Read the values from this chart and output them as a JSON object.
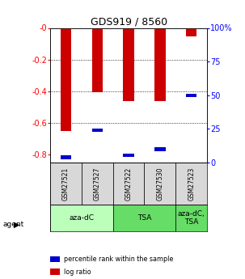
{
  "title": "GDS919 / 8560",
  "samples": [
    "GSM27521",
    "GSM27527",
    "GSM27522",
    "GSM27530",
    "GSM27523"
  ],
  "log_ratios": [
    -0.65,
    -0.405,
    -0.46,
    -0.46,
    -0.055
  ],
  "percentile_ranks": [
    4.0,
    24.0,
    5.5,
    10.0,
    50.0
  ],
  "bar_color": "#cc0000",
  "pct_color": "#0000cc",
  "ylim_left": [
    -0.85,
    0.0
  ],
  "ylim_right": [
    0.0,
    100.0
  ],
  "yticks_left": [
    0.0,
    -0.2,
    -0.4,
    -0.6,
    -0.8
  ],
  "ytick_labels_left": [
    "-0",
    "-0.2",
    "-0.4",
    "-0.6",
    "-0.8"
  ],
  "yticks_right": [
    0,
    25,
    50,
    75,
    100
  ],
  "ytick_labels_right": [
    "0",
    "25",
    "50",
    "75",
    "100%"
  ],
  "agent_groups": [
    {
      "label": "aza-dC",
      "indices": [
        0,
        1
      ],
      "color": "#bbffbb"
    },
    {
      "label": "TSA",
      "indices": [
        2,
        3
      ],
      "color": "#66dd66"
    },
    {
      "label": "aza-dC,\nTSA",
      "indices": [
        4
      ],
      "color": "#66dd66"
    }
  ],
  "legend_items": [
    {
      "label": "log ratio",
      "color": "#cc0000"
    },
    {
      "label": "percentile rank within the sample",
      "color": "#0000cc"
    }
  ],
  "bar_width": 0.35,
  "pct_bar_height": 0.022,
  "background_color": "#ffffff"
}
